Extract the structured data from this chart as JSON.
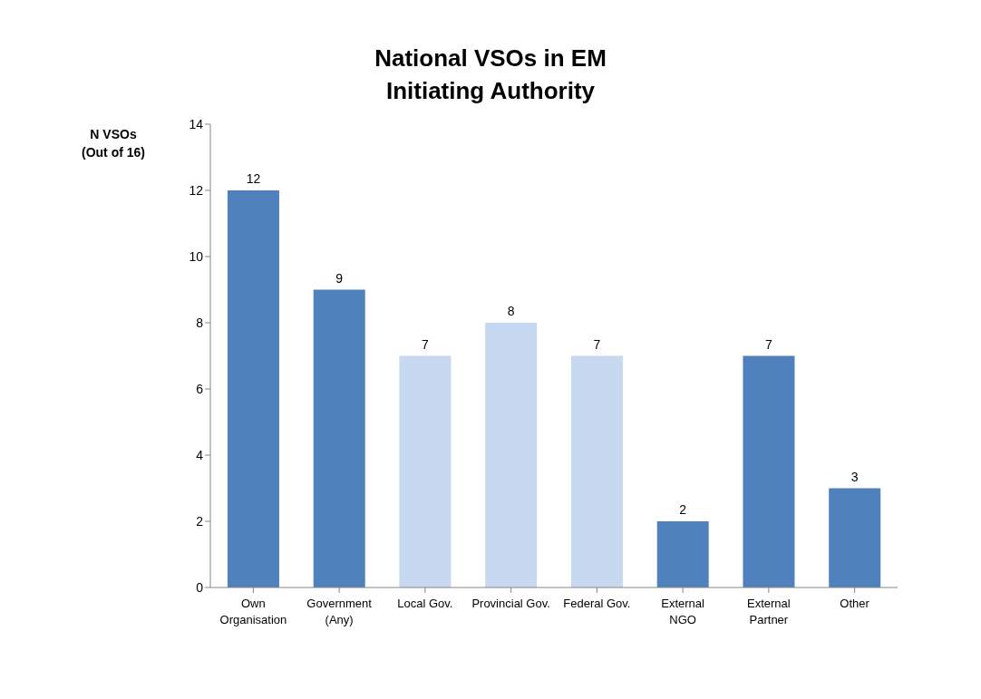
{
  "chart_data": {
    "type": "bar",
    "title": "National VSOs in EM\nInitiating Authority",
    "ylabel": "N VSOs\n(Out of 16)",
    "categories": [
      "Own\nOrganisation",
      "Government\n(Any)",
      "Local Gov.",
      "Provincial Gov.",
      "Federal Gov.",
      "External\nNGO",
      "External\nPartner",
      "Other"
    ],
    "values": [
      12,
      9,
      7,
      8,
      7,
      2,
      7,
      3
    ],
    "colors": [
      "#4f81bd",
      "#4f81bd",
      "#c6d9f1",
      "#c6d9f1",
      "#c6d9f1",
      "#4f81bd",
      "#4f81bd",
      "#4f81bd"
    ],
    "ylim": [
      0,
      14
    ],
    "yticks": [
      0,
      2,
      4,
      6,
      8,
      10,
      12,
      14
    ],
    "grid": false,
    "data_labels": true
  }
}
